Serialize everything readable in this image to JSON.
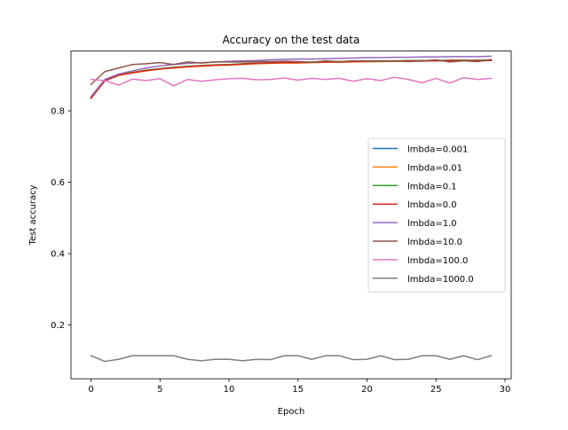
{
  "chart_data": {
    "type": "line",
    "title": "Accuracy on the test data",
    "xlabel": "Epoch",
    "ylabel": "Test accuracy",
    "xlim": [
      -1.45,
      30.45
    ],
    "ylim": [
      0.0495,
      0.9675
    ],
    "xticks": [
      0,
      5,
      10,
      15,
      20,
      25,
      30
    ],
    "yticks": [
      0.2,
      0.4,
      0.6,
      0.8
    ],
    "ytick_labels": [
      "0.2",
      "0.4",
      "0.6",
      "0.8"
    ],
    "grid": false,
    "legend_position": "center-right",
    "x": [
      0,
      1,
      2,
      3,
      4,
      5,
      6,
      7,
      8,
      9,
      10,
      11,
      12,
      13,
      14,
      15,
      16,
      17,
      18,
      19,
      20,
      21,
      22,
      23,
      24,
      25,
      26,
      27,
      28,
      29
    ],
    "series": [
      {
        "name": "lmbda=0.001",
        "color": "#1f77b4",
        "values": [
          0.838,
          0.885,
          0.9,
          0.907,
          0.913,
          0.918,
          0.921,
          0.924,
          0.926,
          0.928,
          0.929,
          0.931,
          0.933,
          0.934,
          0.935,
          0.935,
          0.936,
          0.937,
          0.937,
          0.938,
          0.938,
          0.939,
          0.939,
          0.939,
          0.94,
          0.94,
          0.94,
          0.94,
          0.941,
          0.941
        ]
      },
      {
        "name": "lmbda=0.01",
        "color": "#ff7f0e",
        "values": [
          0.836,
          0.884,
          0.899,
          0.906,
          0.912,
          0.917,
          0.92,
          0.923,
          0.925,
          0.927,
          0.928,
          0.93,
          0.932,
          0.933,
          0.934,
          0.934,
          0.935,
          0.936,
          0.936,
          0.937,
          0.938,
          0.938,
          0.939,
          0.939,
          0.939,
          0.94,
          0.94,
          0.94,
          0.94,
          0.941
        ]
      },
      {
        "name": "lmbda=0.1",
        "color": "#2ca02c",
        "values": [
          0.837,
          0.885,
          0.901,
          0.908,
          0.914,
          0.918,
          0.922,
          0.925,
          0.927,
          0.929,
          0.93,
          0.932,
          0.934,
          0.935,
          0.936,
          0.936,
          0.937,
          0.938,
          0.938,
          0.939,
          0.94,
          0.94,
          0.94,
          0.941,
          0.941,
          0.941,
          0.942,
          0.942,
          0.942,
          0.943
        ]
      },
      {
        "name": "lmbda=0.0",
        "color": "#d62728",
        "values": [
          0.835,
          0.884,
          0.9,
          0.907,
          0.913,
          0.917,
          0.921,
          0.924,
          0.926,
          0.928,
          0.929,
          0.931,
          0.933,
          0.934,
          0.935,
          0.935,
          0.936,
          0.937,
          0.937,
          0.938,
          0.939,
          0.939,
          0.939,
          0.94,
          0.94,
          0.94,
          0.941,
          0.941,
          0.941,
          0.941
        ]
      },
      {
        "name": "lmbda=1.0",
        "color": "#9467bd",
        "values": [
          0.84,
          0.888,
          0.903,
          0.912,
          0.92,
          0.926,
          0.93,
          0.933,
          0.935,
          0.937,
          0.939,
          0.94,
          0.941,
          0.943,
          0.944,
          0.945,
          0.945,
          0.946,
          0.947,
          0.948,
          0.949,
          0.949,
          0.95,
          0.95,
          0.951,
          0.951,
          0.952,
          0.952,
          0.952,
          0.953
        ]
      },
      {
        "name": "lmbda=10.0",
        "color": "#8c564b",
        "values": [
          0.874,
          0.91,
          0.92,
          0.93,
          0.932,
          0.935,
          0.93,
          0.937,
          0.934,
          0.937,
          0.937,
          0.937,
          0.938,
          0.938,
          0.939,
          0.938,
          0.936,
          0.94,
          0.938,
          0.94,
          0.94,
          0.939,
          0.94,
          0.938,
          0.94,
          0.943,
          0.937,
          0.94,
          0.938,
          0.944
        ]
      },
      {
        "name": "lmbda=100.0",
        "color": "#e377c2",
        "values": [
          0.888,
          0.885,
          0.872,
          0.889,
          0.885,
          0.89,
          0.87,
          0.888,
          0.883,
          0.887,
          0.89,
          0.891,
          0.887,
          0.888,
          0.892,
          0.886,
          0.891,
          0.888,
          0.891,
          0.883,
          0.89,
          0.885,
          0.894,
          0.888,
          0.879,
          0.891,
          0.878,
          0.893,
          0.888,
          0.891
        ]
      },
      {
        "name": "lmbda=1000.0",
        "color": "#7f7f7f",
        "values": [
          0.114,
          0.098,
          0.104,
          0.114,
          0.114,
          0.114,
          0.114,
          0.104,
          0.1,
          0.104,
          0.104,
          0.1,
          0.104,
          0.103,
          0.114,
          0.114,
          0.104,
          0.114,
          0.114,
          0.103,
          0.104,
          0.114,
          0.103,
          0.104,
          0.114,
          0.114,
          0.104,
          0.114,
          0.103,
          0.114
        ]
      }
    ]
  }
}
